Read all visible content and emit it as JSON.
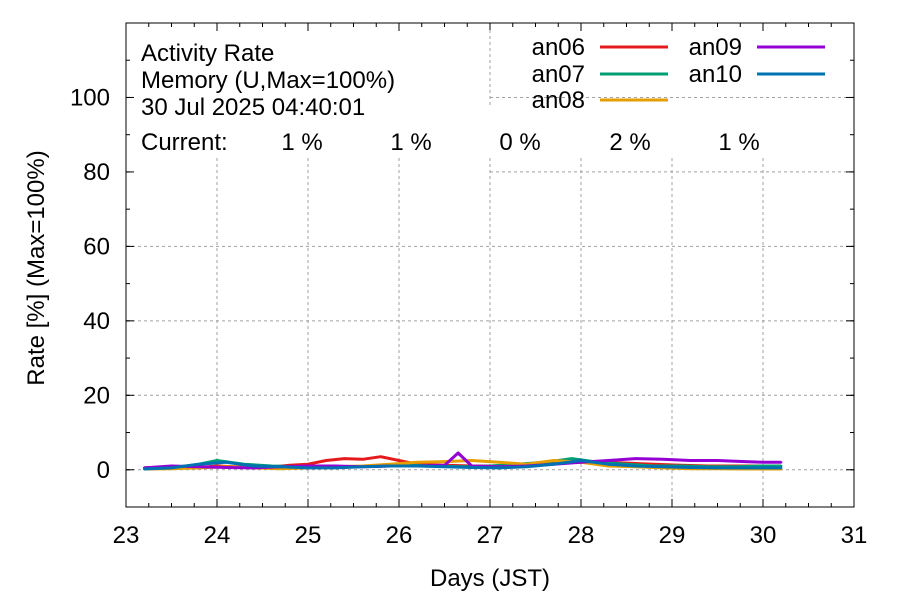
{
  "chart_data": {
    "type": "line",
    "title_lines": [
      "Activity Rate",
      "Memory (U,Max=100%)",
      "30 Jul 2025 04:40:01"
    ],
    "current_label": "Current:",
    "xlabel": "Days (JST)",
    "ylabel": "Rate [%]  (Max=100%)",
    "xlim": [
      23,
      31
    ],
    "ylim": [
      -10,
      120
    ],
    "x_ticks": [
      23,
      24,
      25,
      26,
      27,
      28,
      29,
      30,
      31
    ],
    "y_ticks": [
      0,
      20,
      40,
      60,
      80,
      100
    ],
    "x_tick_labels": [
      "23",
      "24",
      "25",
      "26",
      "27",
      "28",
      "29",
      "30",
      "31"
    ],
    "y_tick_labels": [
      "0",
      "20",
      "40",
      "60",
      "80",
      "100"
    ],
    "grid": true,
    "legend_position": "top-right",
    "series": [
      {
        "name": "an06",
        "color": "#e41a1c",
        "current": "1 %",
        "points": [
          [
            23.2,
            0.5
          ],
          [
            23.5,
            0.8
          ],
          [
            23.8,
            0.6
          ],
          [
            24.0,
            1.0
          ],
          [
            24.2,
            0.8
          ],
          [
            24.5,
            0.5
          ],
          [
            24.8,
            1.2
          ],
          [
            25.0,
            1.5
          ],
          [
            25.2,
            2.5
          ],
          [
            25.4,
            3.0
          ],
          [
            25.6,
            2.8
          ],
          [
            25.8,
            3.5
          ],
          [
            26.0,
            2.5
          ],
          [
            26.2,
            1.5
          ],
          [
            26.5,
            1.2
          ],
          [
            26.8,
            1.0
          ],
          [
            27.0,
            1.0
          ],
          [
            27.3,
            0.8
          ],
          [
            27.6,
            1.5
          ],
          [
            27.9,
            2.0
          ],
          [
            28.2,
            2.0
          ],
          [
            28.5,
            1.8
          ],
          [
            28.8,
            1.5
          ],
          [
            29.1,
            1.2
          ],
          [
            29.4,
            1.0
          ],
          [
            29.7,
            1.0
          ],
          [
            30.0,
            1.0
          ],
          [
            30.2,
            1.0
          ]
        ]
      },
      {
        "name": "an07",
        "color": "#009e73",
        "current": "1 %",
        "points": [
          [
            23.2,
            0.3
          ],
          [
            23.5,
            0.5
          ],
          [
            23.8,
            1.5
          ],
          [
            24.0,
            2.5
          ],
          [
            24.3,
            1.5
          ],
          [
            24.6,
            1.0
          ],
          [
            24.9,
            0.8
          ],
          [
            25.2,
            0.6
          ],
          [
            25.5,
            0.8
          ],
          [
            25.8,
            1.0
          ],
          [
            26.1,
            1.2
          ],
          [
            26.4,
            1.0
          ],
          [
            26.7,
            0.8
          ],
          [
            27.0,
            1.0
          ],
          [
            27.3,
            1.5
          ],
          [
            27.6,
            2.0
          ],
          [
            27.9,
            3.0
          ],
          [
            28.2,
            2.0
          ],
          [
            28.5,
            1.5
          ],
          [
            28.8,
            1.0
          ],
          [
            29.1,
            1.0
          ],
          [
            29.4,
            0.8
          ],
          [
            29.7,
            0.8
          ],
          [
            30.0,
            1.0
          ],
          [
            30.2,
            1.0
          ]
        ]
      },
      {
        "name": "an08",
        "color": "#e69f00",
        "current": "0 %",
        "points": [
          [
            23.2,
            0.2
          ],
          [
            23.5,
            0.3
          ],
          [
            23.8,
            0.5
          ],
          [
            24.1,
            0.8
          ],
          [
            24.4,
            0.5
          ],
          [
            24.7,
            0.3
          ],
          [
            25.0,
            0.5
          ],
          [
            25.3,
            0.8
          ],
          [
            25.6,
            1.0
          ],
          [
            25.9,
            1.5
          ],
          [
            26.2,
            2.0
          ],
          [
            26.5,
            2.2
          ],
          [
            26.8,
            2.5
          ],
          [
            27.1,
            2.0
          ],
          [
            27.4,
            1.5
          ],
          [
            27.7,
            2.5
          ],
          [
            28.0,
            2.0
          ],
          [
            28.3,
            1.0
          ],
          [
            28.6,
            0.8
          ],
          [
            28.9,
            0.5
          ],
          [
            29.2,
            0.3
          ],
          [
            29.5,
            0.3
          ],
          [
            29.8,
            0.2
          ],
          [
            30.2,
            0.2
          ]
        ]
      },
      {
        "name": "an09",
        "color": "#9400d3",
        "current": "2 %",
        "points": [
          [
            23.2,
            0.5
          ],
          [
            23.5,
            1.0
          ],
          [
            23.8,
            0.8
          ],
          [
            24.1,
            0.6
          ],
          [
            24.4,
            0.5
          ],
          [
            24.7,
            0.8
          ],
          [
            25.0,
            1.0
          ],
          [
            25.3,
            1.0
          ],
          [
            25.6,
            0.8
          ],
          [
            25.9,
            1.0
          ],
          [
            26.2,
            1.0
          ],
          [
            26.5,
            1.2
          ],
          [
            26.65,
            4.5
          ],
          [
            26.8,
            1.0
          ],
          [
            27.1,
            0.8
          ],
          [
            27.4,
            1.0
          ],
          [
            27.7,
            1.5
          ],
          [
            28.0,
            2.0
          ],
          [
            28.3,
            2.5
          ],
          [
            28.6,
            3.0
          ],
          [
            28.9,
            2.8
          ],
          [
            29.2,
            2.5
          ],
          [
            29.5,
            2.5
          ],
          [
            29.8,
            2.2
          ],
          [
            30.0,
            2.0
          ],
          [
            30.2,
            2.0
          ]
        ]
      },
      {
        "name": "an10",
        "color": "#0072b2",
        "current": "1 %",
        "points": [
          [
            23.2,
            0.2
          ],
          [
            23.5,
            0.5
          ],
          [
            23.8,
            1.5
          ],
          [
            24.1,
            2.0
          ],
          [
            24.4,
            1.0
          ],
          [
            24.7,
            0.8
          ],
          [
            25.0,
            0.5
          ],
          [
            25.3,
            0.5
          ],
          [
            25.6,
            0.8
          ],
          [
            25.9,
            1.0
          ],
          [
            26.2,
            1.0
          ],
          [
            26.5,
            0.8
          ],
          [
            26.8,
            0.6
          ],
          [
            27.1,
            0.5
          ],
          [
            27.4,
            0.8
          ],
          [
            27.7,
            1.5
          ],
          [
            28.0,
            2.5
          ],
          [
            28.3,
            1.5
          ],
          [
            28.6,
            1.0
          ],
          [
            28.9,
            0.8
          ],
          [
            29.2,
            0.6
          ],
          [
            29.5,
            0.5
          ],
          [
            29.8,
            0.5
          ],
          [
            30.2,
            0.5
          ]
        ]
      }
    ]
  }
}
